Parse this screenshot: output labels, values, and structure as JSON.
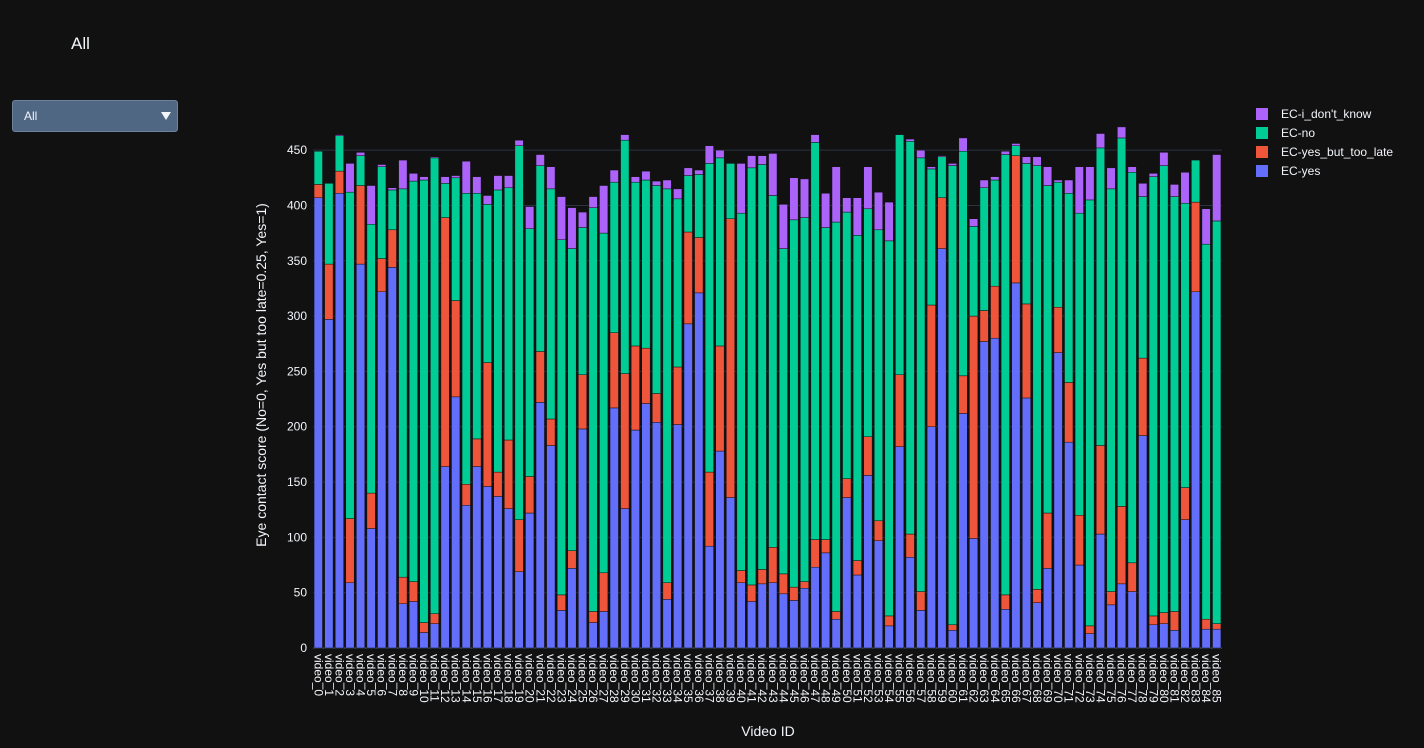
{
  "dropdown": {
    "selected": "All"
  },
  "chart_data": {
    "type": "stacked_bar",
    "title": "All",
    "x_label": "Video ID",
    "y_label": "Eye contact score (No=0, Yes but too late=0.25, Yes=1)",
    "categories": [
      "video_0",
      "video_1",
      "video_2",
      "video_3",
      "video_4",
      "video_5",
      "video_6",
      "video_7",
      "video_8",
      "video_9",
      "video_10",
      "video_11",
      "video_12",
      "video_13",
      "video_14",
      "video_15",
      "video_16",
      "video_17",
      "video_18",
      "video_19",
      "video_20",
      "video_21",
      "video_22",
      "video_23",
      "video_24",
      "video_25",
      "video_26",
      "video_27",
      "video_28",
      "video_29",
      "video_30",
      "video_31",
      "video_32",
      "video_33",
      "video_34",
      "video_35",
      "video_36",
      "video_37",
      "video_38",
      "video_39",
      "video_40",
      "video_41",
      "video_42",
      "video_43",
      "video_44",
      "video_45",
      "video_46",
      "video_47",
      "video_48",
      "video_49",
      "video_50",
      "video_51",
      "video_52",
      "video_53",
      "video_54",
      "video_55",
      "video_56",
      "video_57",
      "video_58",
      "video_59",
      "video_60",
      "video_61",
      "video_62",
      "video_63",
      "video_64",
      "video_65",
      "video_66",
      "video_67",
      "video_68",
      "video_69",
      "video_70",
      "video_71",
      "video_72",
      "video_73",
      "video_74",
      "video_75",
      "video_76",
      "video_77",
      "video_78",
      "video_79",
      "video_80",
      "video_81",
      "video_82",
      "video_83",
      "video_84",
      "video_85"
    ],
    "series": [
      {
        "name": "EC-yes",
        "color": "#636efa",
        "values": [
          407,
          297,
          411,
          59,
          347,
          108,
          322,
          344,
          40,
          42,
          14,
          22,
          164,
          227,
          129,
          164,
          146,
          137,
          126,
          69,
          122,
          222,
          183,
          34,
          72,
          198,
          23,
          33,
          217,
          126,
          197,
          221,
          204,
          44,
          202,
          293,
          321,
          92,
          178,
          136,
          59,
          42,
          58,
          59,
          49,
          43,
          54,
          73,
          86,
          26,
          136,
          66,
          156,
          97,
          20,
          182,
          82,
          34,
          200,
          361,
          16,
          212,
          99,
          277,
          280,
          35,
          330,
          226,
          41,
          72,
          267,
          186,
          75,
          13,
          103,
          39,
          58,
          51,
          192,
          21,
          22,
          16,
          116,
          322,
          17,
          17
        ]
      },
      {
        "name": "EC-yes_but_too_late",
        "color": "#ef553b",
        "values": [
          12,
          50,
          20,
          58,
          71,
          32,
          30,
          34,
          24,
          18,
          9,
          9,
          225,
          87,
          19,
          25,
          112,
          22,
          62,
          47,
          33,
          46,
          24,
          14,
          16,
          49,
          10,
          35,
          68,
          122,
          76,
          50,
          26,
          15,
          52,
          83,
          50,
          67,
          95,
          252,
          11,
          15,
          13,
          32,
          18,
          12,
          6,
          25,
          12,
          7,
          17,
          13,
          35,
          18,
          9,
          65,
          21,
          17,
          110,
          46,
          5,
          34,
          201,
          28,
          47,
          13,
          115,
          85,
          12,
          50,
          41,
          54,
          45,
          7,
          80,
          12,
          70,
          26,
          70,
          8,
          10,
          17,
          29,
          81,
          9,
          5
        ]
      },
      {
        "name": "EC-no",
        "color": "#00cc96",
        "values": [
          30,
          73,
          32,
          295,
          27,
          243,
          83,
          36,
          351,
          362,
          400,
          412,
          31,
          111,
          263,
          222,
          143,
          255,
          228,
          338,
          224,
          168,
          208,
          321,
          273,
          133,
          365,
          307,
          136,
          211,
          148,
          152,
          188,
          356,
          152,
          51,
          57,
          279,
          170,
          50,
          323,
          377,
          366,
          318,
          294,
          332,
          329,
          359,
          282,
          352,
          241,
          294,
          206,
          263,
          339,
          217,
          355,
          392,
          123,
          37,
          415,
          203,
          81,
          111,
          96,
          398,
          9,
          127,
          383,
          296,
          113,
          171,
          273,
          385,
          269,
          364,
          333,
          353,
          146,
          397,
          404,
          375,
          257,
          38,
          339,
          364
        ]
      },
      {
        "name": "EC-i_don't_know",
        "color": "#ab63fa",
        "values": [
          0,
          0,
          1,
          26,
          3,
          35,
          2,
          2,
          26,
          7,
          3,
          1,
          6,
          2,
          29,
          15,
          8,
          13,
          11,
          5,
          20,
          10,
          20,
          39,
          37,
          14,
          10,
          43,
          11,
          5,
          5,
          8,
          4,
          8,
          9,
          7,
          4,
          16,
          7,
          0,
          45,
          11,
          8,
          38,
          40,
          38,
          35,
          7,
          31,
          50,
          13,
          34,
          38,
          34,
          35,
          0,
          2,
          7,
          2,
          1,
          2,
          12,
          7,
          7,
          3,
          3,
          2,
          6,
          8,
          17,
          2,
          12,
          42,
          30,
          13,
          19,
          10,
          5,
          12,
          3,
          12,
          11,
          28,
          0,
          32,
          60
        ]
      }
    ],
    "ylim": [
      0,
      470
    ],
    "yticks": [
      0,
      50,
      100,
      150,
      200,
      250,
      300,
      350,
      400,
      450
    ],
    "grid": true,
    "legend": "top-right"
  }
}
